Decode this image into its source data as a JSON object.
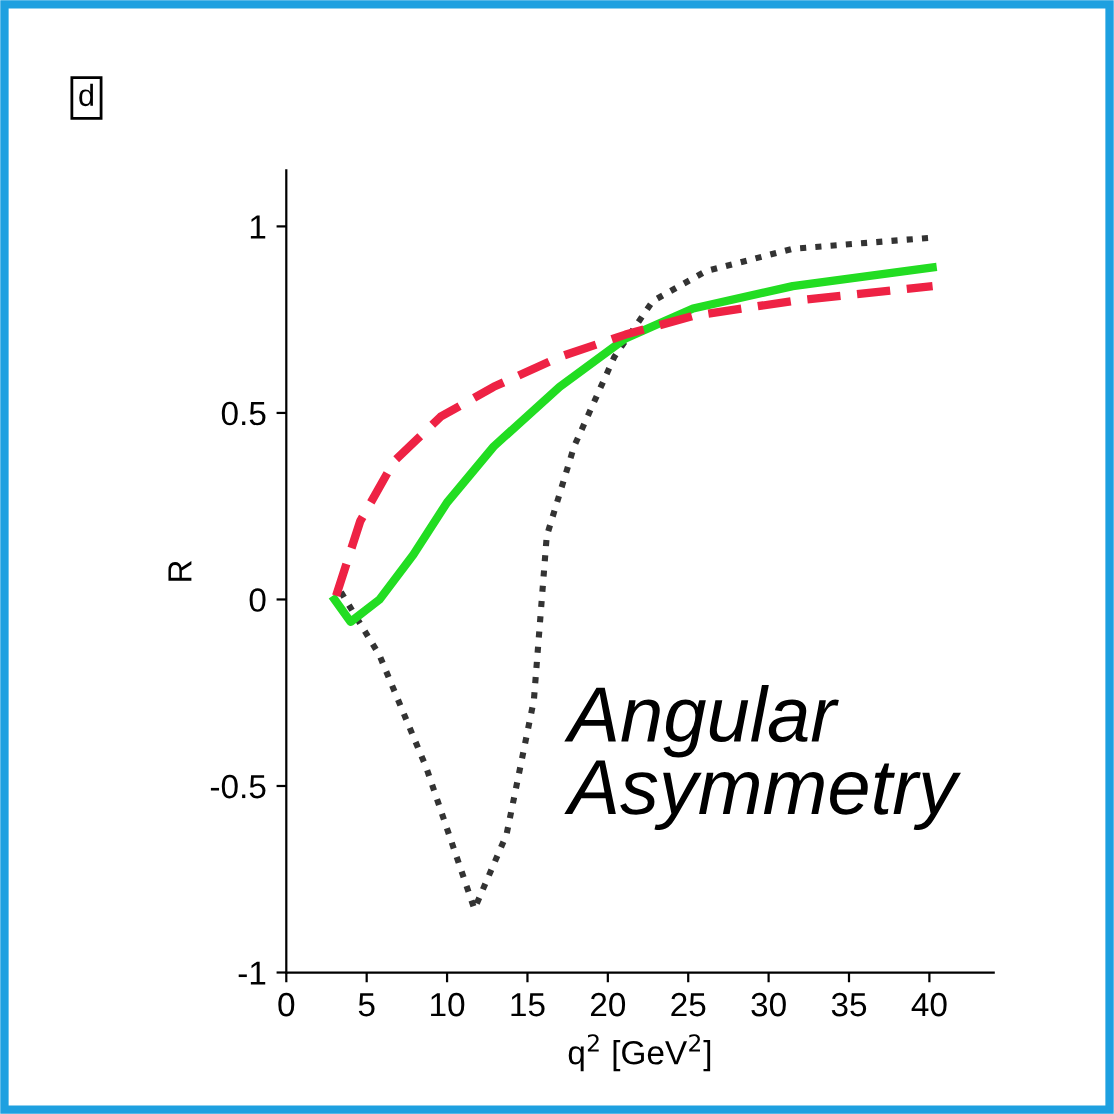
{
  "chart_data": {
    "type": "line",
    "xlabel": "q$^{2}$ [GeV$^{2}$]",
    "ylabel": "R",
    "annotations": [
      "d",
      "Angular Asymmetry"
    ],
    "xlim": [
      0,
      44
    ],
    "ylim": [
      -1,
      1.15
    ],
    "xticks": [
      0,
      5,
      10,
      15,
      20,
      25,
      30,
      35,
      40
    ],
    "yticks": [
      -1,
      -0.5,
      0,
      0.5,
      1
    ],
    "grid": false,
    "legend": false,
    "series": [
      {
        "color": "#333333",
        "line_style": "dotted",
        "x": [
          3.4,
          5.8,
          8.7,
          11.7,
          13.7,
          15.4,
          16.2,
          17.9,
          20.4,
          22.8,
          26.1,
          31.5,
          40.2
        ],
        "values": [
          0.02,
          -0.15,
          -0.45,
          -0.83,
          -0.63,
          -0.27,
          0.17,
          0.41,
          0.65,
          0.8,
          0.88,
          0.94,
          0.97
        ]
      },
      {
        "color": "#22dd22",
        "line_style": "solid",
        "x": [
          3,
          4,
          5.8,
          7.9,
          10,
          12.9,
          17,
          21.1,
          25.3,
          31.5,
          40.2
        ],
        "values": [
          0,
          -0.06,
          0,
          0.12,
          0.26,
          0.41,
          0.57,
          0.7,
          0.78,
          0.84,
          0.89
        ]
      },
      {
        "color": "#ee2244",
        "line_style": "dashed",
        "x": [
          3.1,
          4.6,
          6.7,
          9.6,
          12.9,
          17,
          21.1,
          25.3,
          31.5,
          40.2
        ],
        "values": [
          0.01,
          0.21,
          0.37,
          0.49,
          0.57,
          0.65,
          0.71,
          0.76,
          0.8,
          0.84
        ]
      }
    ]
  }
}
